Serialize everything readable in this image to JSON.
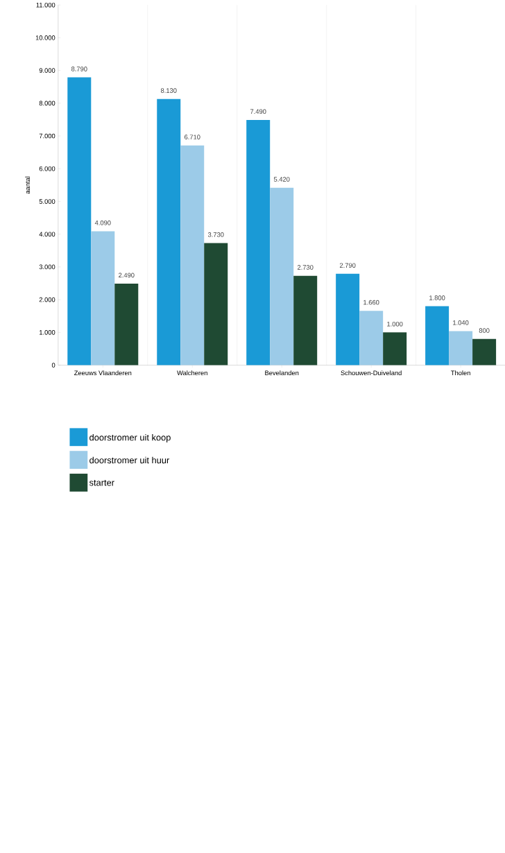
{
  "chart_data": {
    "type": "bar",
    "ylabel": "aantal",
    "categories": [
      "Zeeuws Vlaanderen",
      "Walcheren",
      "Bevelanden",
      "Schouwen-Duiveland",
      "Tholen"
    ],
    "series": [
      {
        "name": "doorstromer uit koop",
        "color": "#1a9ad6",
        "values": [
          8790,
          8130,
          7490,
          2790,
          1800
        ],
        "value_labels": [
          "8.790",
          "8.130",
          "7.490",
          "2.790",
          "1.800"
        ]
      },
      {
        "name": "doorstromer uit huur",
        "color": "#9ccbe8",
        "values": [
          4090,
          6710,
          5420,
          1660,
          1040
        ],
        "value_labels": [
          "4.090",
          "6.710",
          "5.420",
          "1.660",
          "1.040"
        ]
      },
      {
        "name": "starter",
        "color": "#1f4a33",
        "values": [
          2490,
          3730,
          2730,
          1000,
          800
        ],
        "value_labels": [
          "2.490",
          "3.730",
          "2.730",
          "1.000",
          "800"
        ]
      }
    ],
    "ylim": [
      0,
      11000
    ],
    "yticks": [
      {
        "value": 0,
        "label": "0"
      },
      {
        "value": 1000,
        "label": "1.000"
      },
      {
        "value": 2000,
        "label": "2.000"
      },
      {
        "value": 3000,
        "label": "3.000"
      },
      {
        "value": 4000,
        "label": "4.000"
      },
      {
        "value": 5000,
        "label": "5.000"
      },
      {
        "value": 6000,
        "label": "6.000"
      },
      {
        "value": 7000,
        "label": "7.000"
      },
      {
        "value": 8000,
        "label": "8.000"
      },
      {
        "value": 9000,
        "label": "9.000"
      },
      {
        "value": 10000,
        "label": "10.000"
      },
      {
        "value": 11000,
        "label": "11.000"
      }
    ],
    "grid": "x",
    "legend": "bottom"
  }
}
